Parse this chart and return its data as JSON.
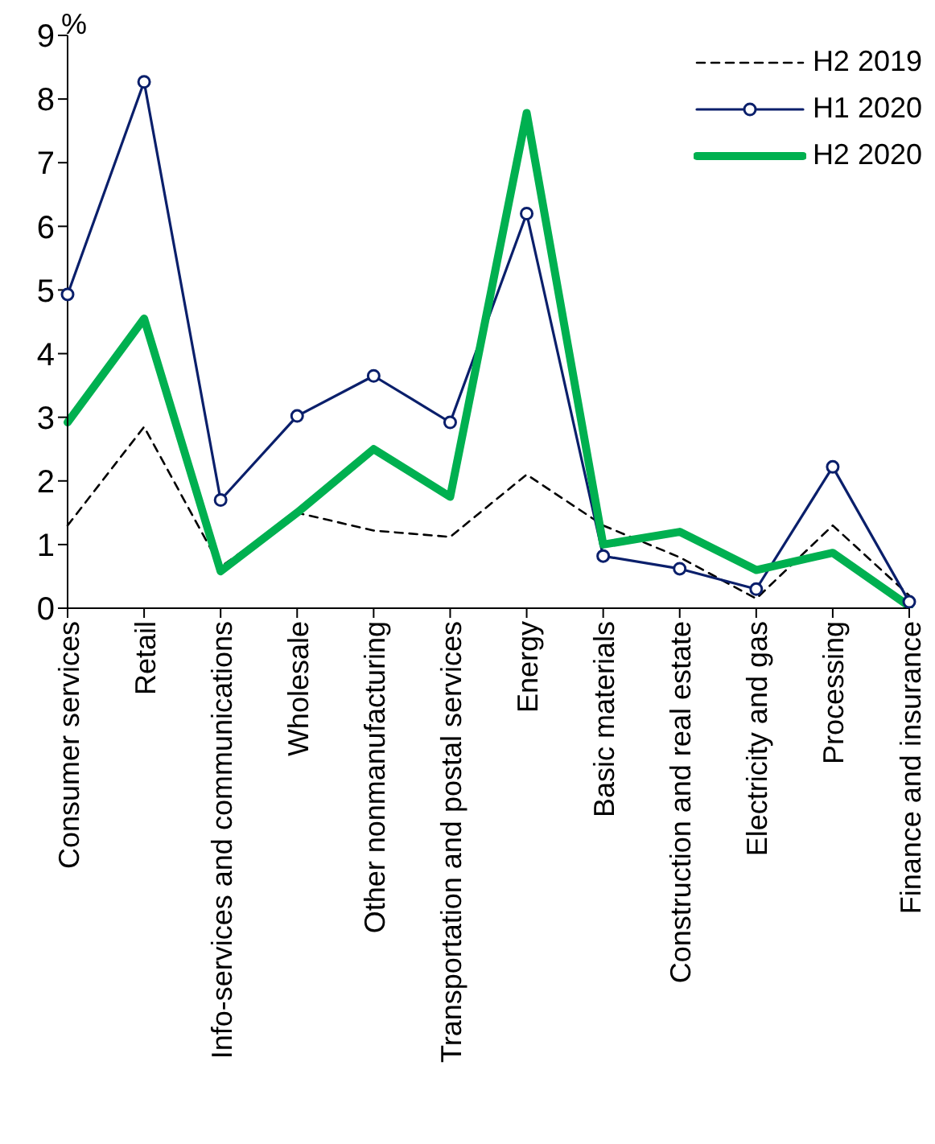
{
  "chart_data": {
    "type": "line",
    "ylabel": "%",
    "categories": [
      "Consumer services",
      "Retail",
      "Info-services and communications",
      "Wholesale",
      "Other nonmanufacturing",
      "Transportation and postal services",
      "Energy",
      "Basic materials",
      "Construction and real estate",
      "Electricity and gas",
      "Processing",
      "Finance and insurance"
    ],
    "ylim": [
      0,
      9
    ],
    "yticks": [
      0,
      1,
      2,
      3,
      4,
      5,
      6,
      7,
      8,
      9
    ],
    "grid": false,
    "legend": "top right",
    "series": [
      {
        "name": "H2 2019",
        "color": "#000000",
        "line_style": "dashed",
        "marker": "none",
        "values": [
          1.3,
          2.85,
          0.65,
          1.5,
          1.22,
          1.12,
          2.1,
          1.3,
          0.8,
          0.15,
          1.3,
          0.2
        ]
      },
      {
        "name": "H1 2020",
        "color": "#0a1f6b",
        "line_style": "solid",
        "marker": "circle",
        "values": [
          4.93,
          8.27,
          1.7,
          3.02,
          3.65,
          2.92,
          6.2,
          0.82,
          0.62,
          0.3,
          2.22,
          0.1
        ]
      },
      {
        "name": "H2 2020",
        "color": "#00b050",
        "line_style": "solid",
        "marker": "none",
        "values": [
          2.92,
          4.55,
          0.58,
          1.5,
          2.5,
          1.75,
          7.78,
          1.0,
          1.2,
          0.6,
          0.87,
          0.03
        ]
      }
    ]
  }
}
